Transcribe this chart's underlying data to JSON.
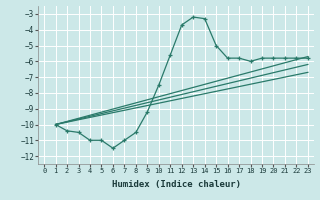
{
  "bg_color": "#cce8e8",
  "grid_color": "#ffffff",
  "line_color": "#2a7a6a",
  "xlabel": "Humidex (Indice chaleur)",
  "xlim": [
    -0.5,
    23.5
  ],
  "ylim": [
    -12.5,
    -2.5
  ],
  "yticks": [
    -12,
    -11,
    -10,
    -9,
    -8,
    -7,
    -6,
    -5,
    -4,
    -3
  ],
  "xticks": [
    0,
    1,
    2,
    3,
    4,
    5,
    6,
    7,
    8,
    9,
    10,
    11,
    12,
    13,
    14,
    15,
    16,
    17,
    18,
    19,
    20,
    21,
    22,
    23
  ],
  "line1_x": [
    1,
    2,
    3,
    4,
    5,
    6,
    7,
    8,
    9,
    10,
    11,
    12,
    13,
    14,
    15,
    16,
    17,
    18,
    19,
    20,
    21,
    22,
    23
  ],
  "line1_y": [
    -10.0,
    -10.4,
    -10.5,
    -11.0,
    -11.0,
    -11.5,
    -11.0,
    -10.5,
    -9.2,
    -7.5,
    -5.6,
    -3.7,
    -3.2,
    -3.3,
    -5.0,
    -5.8,
    -5.8,
    -6.0,
    -5.8,
    -5.8,
    -5.8,
    -5.8,
    -5.8
  ],
  "line2_x": [
    1,
    23
  ],
  "line2_y": [
    -10.0,
    -5.7
  ],
  "line3_x": [
    1,
    23
  ],
  "line3_y": [
    -10.0,
    -6.2
  ],
  "line4_x": [
    1,
    23
  ],
  "line4_y": [
    -10.0,
    -6.7
  ]
}
